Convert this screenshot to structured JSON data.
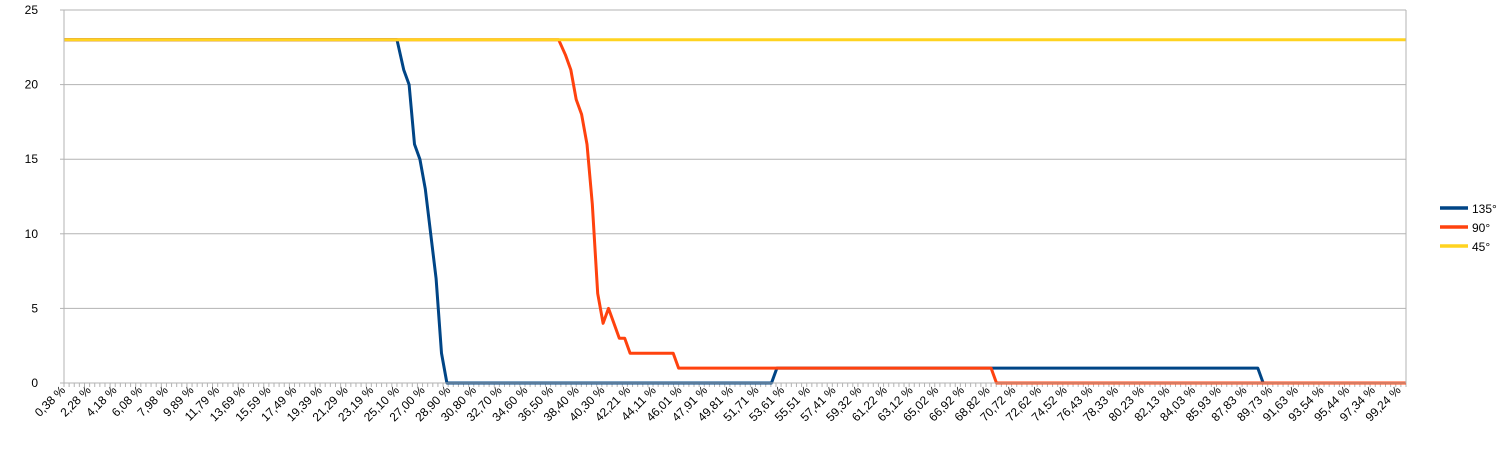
{
  "chart_data": {
    "type": "line",
    "title": "",
    "xlabel": "",
    "ylabel": "",
    "ylim": [
      0,
      25
    ],
    "yticks": [
      "0",
      "5",
      "10",
      "15",
      "20",
      "25"
    ],
    "grid": "horizontal",
    "legend": "right",
    "x_start": 0.38,
    "x_end": 100,
    "xtick_labels": [
      "0,38 %",
      "2,28 %",
      "4,18 %",
      "6,08 %",
      "7,98 %",
      "9,89 %",
      "11,79 %",
      "13,69 %",
      "15,59 %",
      "17,49 %",
      "19,39 %",
      "21,29 %",
      "23,19 %",
      "25,10 %",
      "27,00 %",
      "28,90 %",
      "30,80 %",
      "32,70 %",
      "34,60 %",
      "36,50 %",
      "38,40 %",
      "40,30 %",
      "42,21 %",
      "44,11 %",
      "46,01 %",
      "47,91 %",
      "49,81 %",
      "51,71 %",
      "53,61 %",
      "55,51 %",
      "57,41 %",
      "59,32 %",
      "61,22 %",
      "63,12 %",
      "65,02 %",
      "66,92 %",
      "68,82 %",
      "70,72 %",
      "72,62 %",
      "74,52 %",
      "76,43 %",
      "78,33 %",
      "80,23 %",
      "82,13 %",
      "84,03 %",
      "85,93 %",
      "87,83 %",
      "89,73 %",
      "91,63 %",
      "93,54 %",
      "95,44 %",
      "97,34 %",
      "99,24 %"
    ],
    "series": [
      {
        "name": "135°",
        "color": "#004586",
        "points": [
          [
            0.38,
            23
          ],
          [
            25.1,
            23
          ],
          [
            25.6,
            21
          ],
          [
            26.0,
            20
          ],
          [
            26.4,
            16
          ],
          [
            26.8,
            15
          ],
          [
            27.2,
            13
          ],
          [
            27.6,
            10
          ],
          [
            28.0,
            7
          ],
          [
            28.4,
            2
          ],
          [
            28.8,
            0
          ],
          [
            52.9,
            0
          ],
          [
            53.3,
            1
          ],
          [
            89.0,
            1
          ],
          [
            89.4,
            0
          ],
          [
            100,
            0
          ]
        ]
      },
      {
        "name": "90°",
        "color": "#ff420e",
        "points": [
          [
            0.38,
            23
          ],
          [
            37.1,
            23
          ],
          [
            37.6,
            22
          ],
          [
            38.0,
            21
          ],
          [
            38.4,
            19
          ],
          [
            38.8,
            18
          ],
          [
            39.2,
            16
          ],
          [
            39.6,
            12
          ],
          [
            40.0,
            6
          ],
          [
            40.4,
            4
          ],
          [
            40.8,
            5
          ],
          [
            41.2,
            4
          ],
          [
            41.6,
            3
          ],
          [
            42.0,
            3
          ],
          [
            42.4,
            2
          ],
          [
            45.6,
            2
          ],
          [
            46.0,
            1
          ],
          [
            69.2,
            1
          ],
          [
            69.6,
            0
          ],
          [
            100,
            0
          ]
        ]
      },
      {
        "name": "45°",
        "color": "#ffd320",
        "points": [
          [
            0.38,
            23
          ],
          [
            100,
            23
          ]
        ]
      }
    ]
  }
}
